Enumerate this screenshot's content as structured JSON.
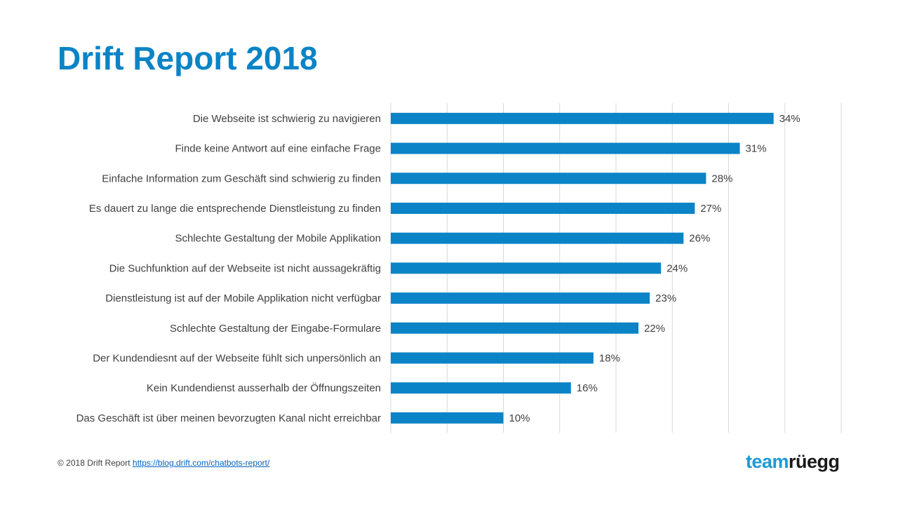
{
  "page": {
    "title": "Drift Report 2018",
    "footer_text": "© 2018 Drift  Report",
    "footer_link": "https://blog.drift.com/chatbots-report/",
    "logo_part1": "team",
    "logo_part2": "rüegg"
  },
  "colors": {
    "title": "#0a84c6",
    "bar": "#0a84c6",
    "grid": "#d9d9d9",
    "label": "#404040"
  },
  "chart_data": {
    "type": "bar",
    "orientation": "horizontal",
    "categories": [
      "Die Webseite ist schwierig zu navigieren",
      "Finde keine Antwort auf eine einfache Frage",
      "Einfache Information zum Geschäft sind schwierig zu finden",
      "Es dauert zu lange die entsprechende Dienstleistung zu finden",
      "Schlechte Gestaltung der Mobile Applikation",
      "Die Suchfunktion auf der Webseite ist nicht aussagekräftig",
      "Dienstleistung ist auf der Mobile Applikation nicht verfügbar",
      "Schlechte Gestaltung der Eingabe-Formulare",
      "Der Kundendiesnt auf der Webseite fühlt sich unpersönlich an",
      "Kein Kundendienst ausserhalb der Öffnungszeiten",
      "Das Geschäft ist über meinen bevorzugten Kanal nicht erreichbar"
    ],
    "values": [
      34,
      31,
      28,
      27,
      26,
      24,
      23,
      22,
      18,
      16,
      10
    ],
    "data_labels": [
      "34%",
      "31%",
      "28%",
      "27%",
      "26%",
      "24%",
      "23%",
      "22%",
      "18%",
      "16%",
      "10%"
    ],
    "xlim": [
      0,
      40
    ],
    "grid": true,
    "legend": false
  }
}
